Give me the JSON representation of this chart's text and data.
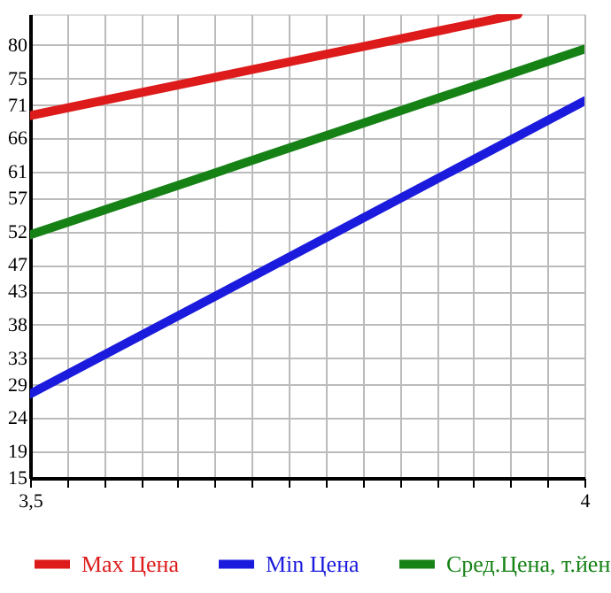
{
  "chart_data": {
    "type": "line",
    "x": [
      3.5,
      4
    ],
    "series": [
      {
        "name": "Max Цена",
        "color": "#dd1b1b",
        "x": [
          3.5,
          3.94
        ],
        "values": [
          69.4,
          84.6
        ]
      },
      {
        "name": "Min Цена",
        "color": "#1b1bdd",
        "values": [
          27.6,
          71.6
        ]
      },
      {
        "name": "Сред.Цена, т.йен",
        "color": "#168216",
        "values": [
          51.5,
          79.4
        ]
      }
    ],
    "xlim": [
      3.5,
      4
    ],
    "xticks": [
      {
        "value": 3.5,
        "label": "3,5"
      },
      {
        "value": 3.5333,
        "label": null
      },
      {
        "value": 3.5667,
        "label": null
      },
      {
        "value": 3.6,
        "label": null
      },
      {
        "value": 3.6333,
        "label": null
      },
      {
        "value": 3.6667,
        "label": null
      },
      {
        "value": 3.7,
        "label": null
      },
      {
        "value": 3.7333,
        "label": null
      },
      {
        "value": 3.7667,
        "label": null
      },
      {
        "value": 3.8,
        "label": null
      },
      {
        "value": 3.8333,
        "label": null
      },
      {
        "value": 3.8667,
        "label": null
      },
      {
        "value": 3.9,
        "label": null
      },
      {
        "value": 3.9333,
        "label": null
      },
      {
        "value": 3.9667,
        "label": null
      },
      {
        "value": 4,
        "label": "4"
      }
    ],
    "ylim": [
      15,
      84.64
    ],
    "yticks": [
      15,
      19,
      24,
      29,
      33,
      38,
      43,
      47,
      52,
      57,
      61,
      66,
      71,
      75,
      80
    ],
    "grid": true,
    "legend": "bottom",
    "marker": "none",
    "line_style": "solid"
  }
}
